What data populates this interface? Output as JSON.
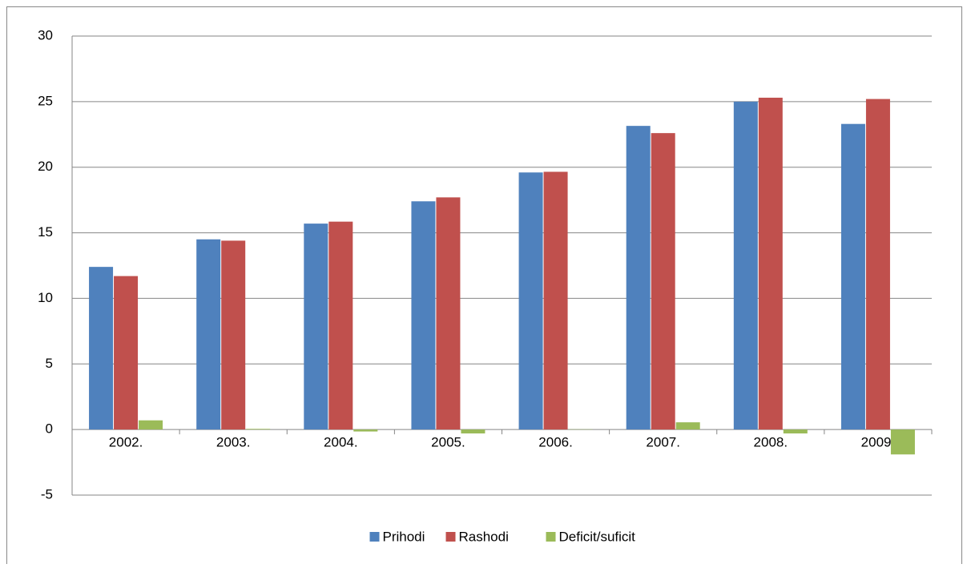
{
  "chart_data": {
    "type": "bar",
    "categories": [
      "2002.",
      "2003.",
      "2004.",
      "2005.",
      "2006.",
      "2007.",
      "2008.",
      "2009."
    ],
    "series": [
      {
        "name": "Prihodi",
        "color": "#4f81bd",
        "values": [
          12.4,
          14.5,
          15.7,
          17.4,
          19.6,
          23.15,
          25.0,
          23.3
        ]
      },
      {
        "name": "Rashodi",
        "color": "#c0504d",
        "values": [
          11.7,
          14.4,
          15.85,
          17.7,
          19.65,
          22.6,
          25.3,
          25.2
        ]
      },
      {
        "name": "Deficit/suficit",
        "color": "#9bbb59",
        "values": [
          0.7,
          0.05,
          -0.15,
          -0.3,
          0.02,
          0.55,
          -0.3,
          -1.9
        ]
      }
    ],
    "ylim": [
      -5,
      30
    ],
    "yticks": [
      -5,
      0,
      5,
      10,
      15,
      20,
      25,
      30
    ],
    "grid": true,
    "legend": "bottom"
  }
}
